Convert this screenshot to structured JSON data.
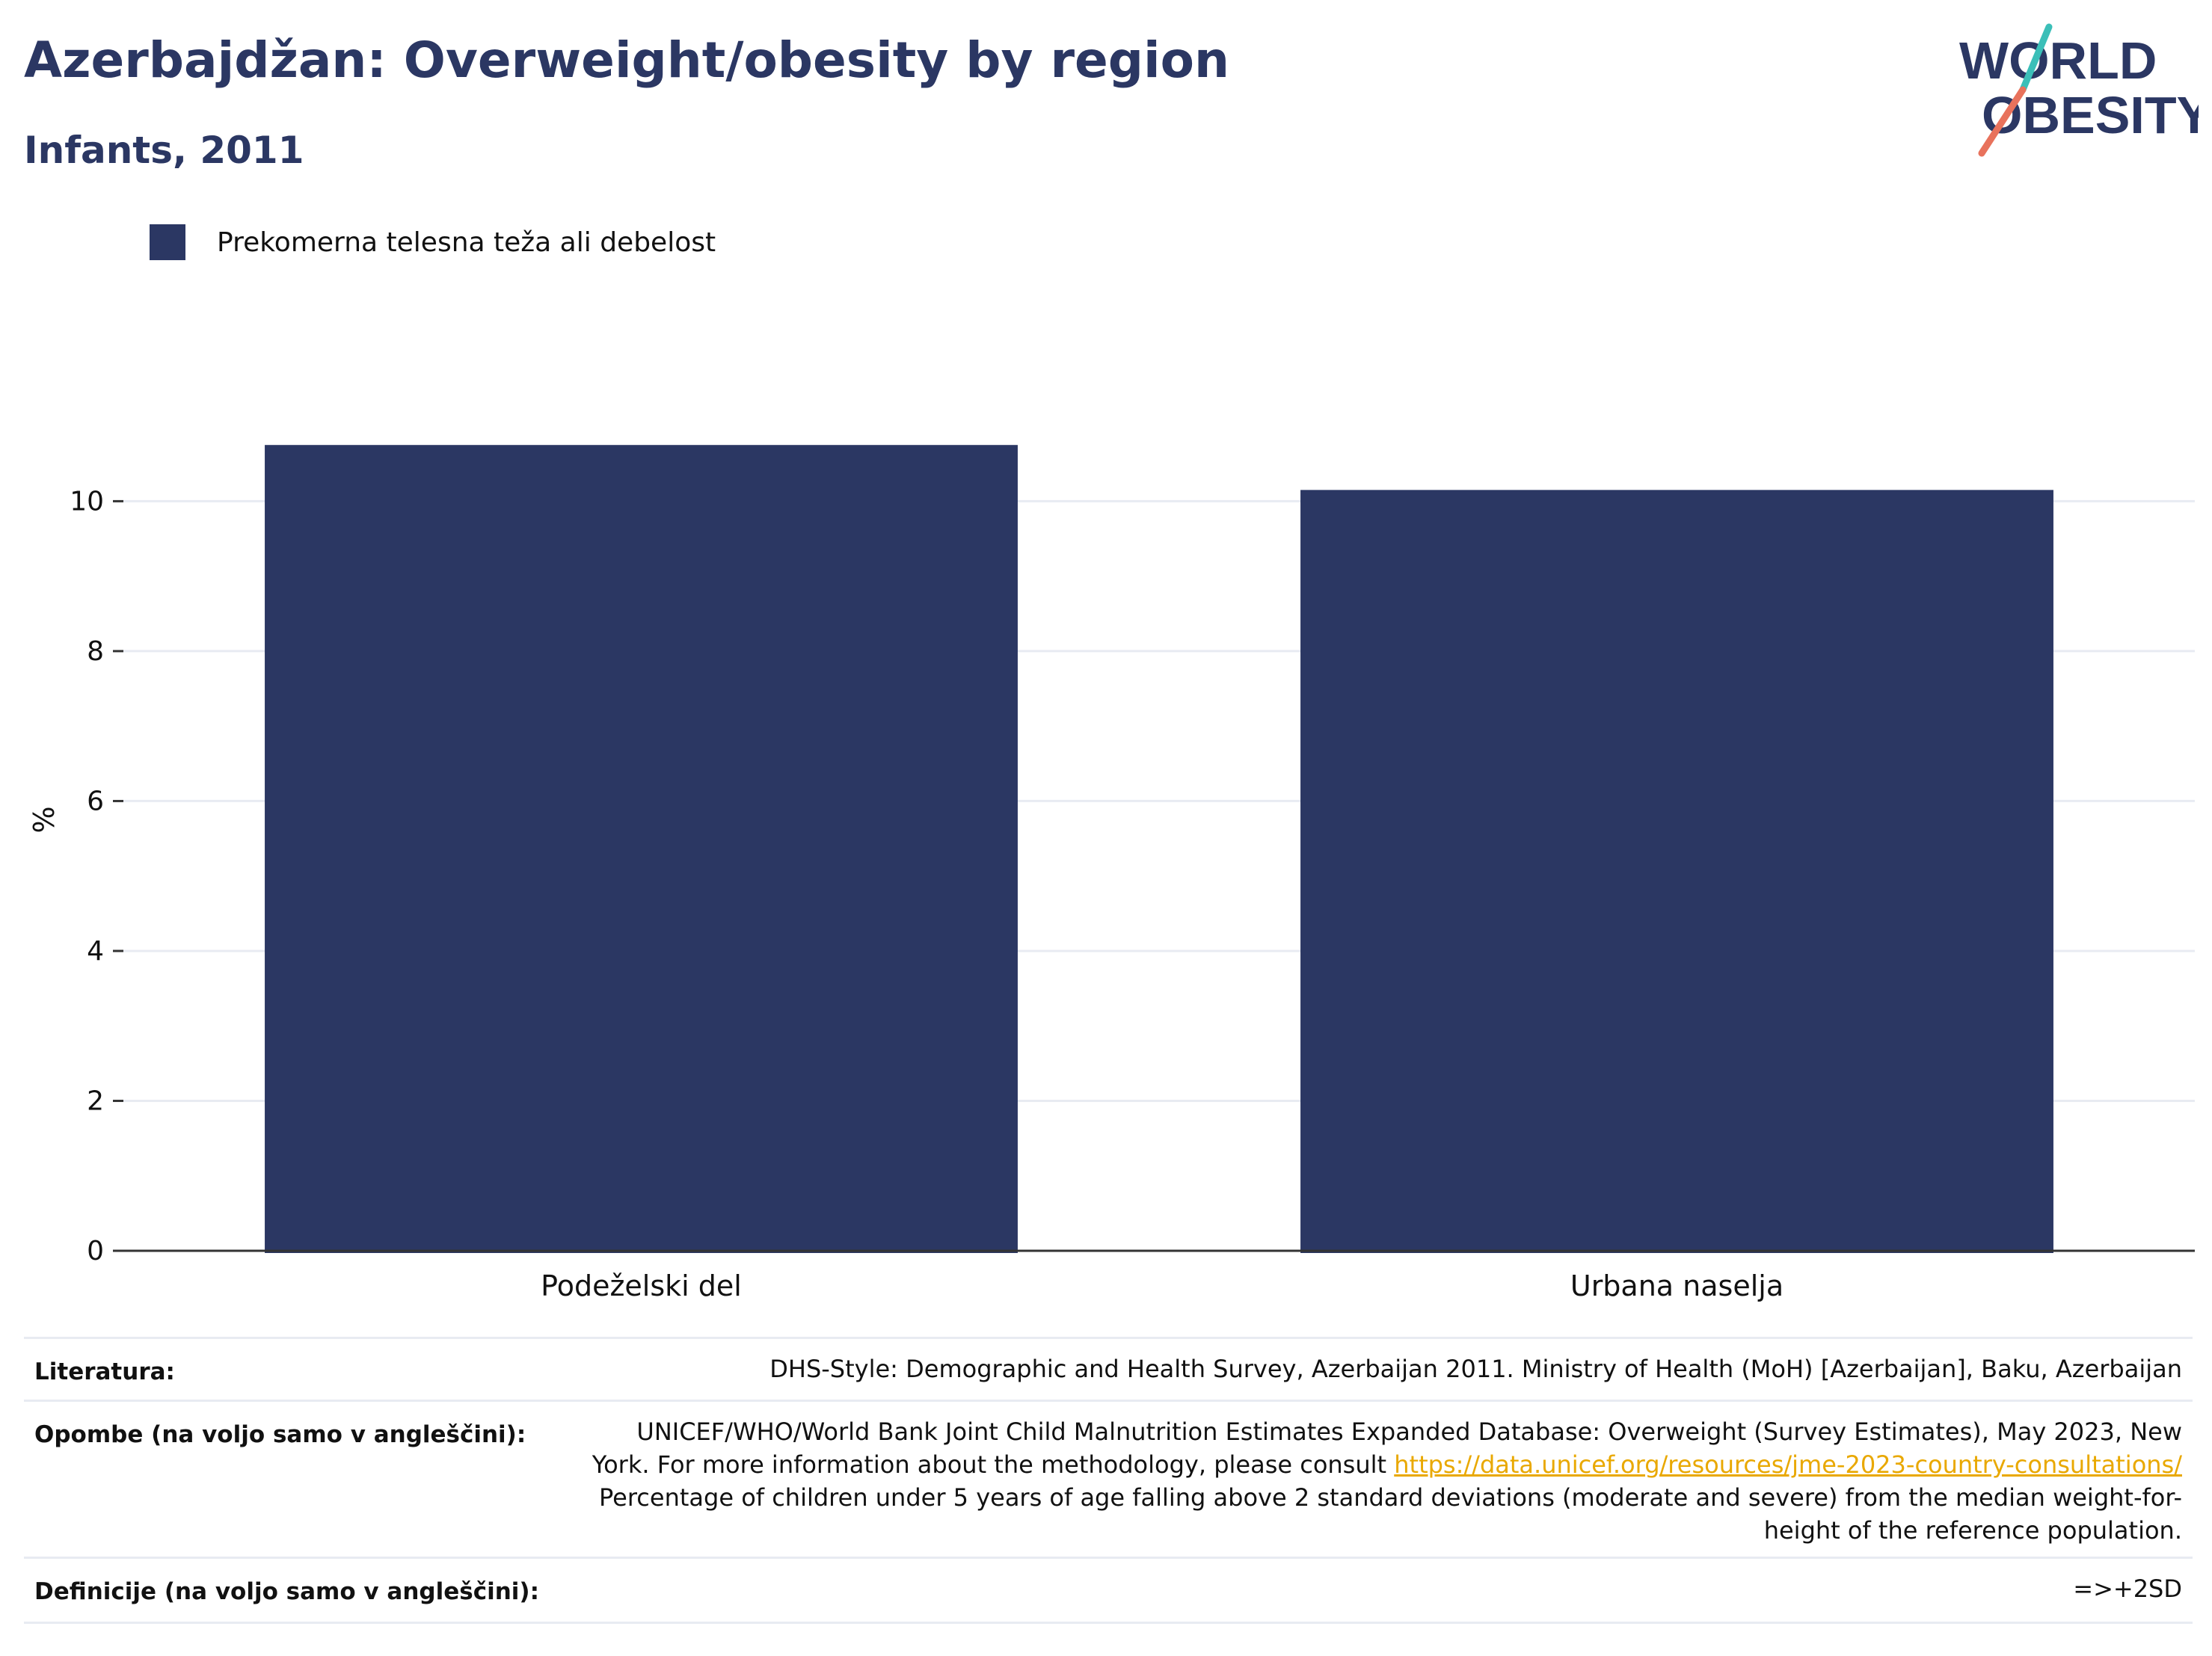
{
  "header": {
    "title": "Azerbajdžan: Overweight/obesity by region",
    "subtitle": "Infants, 2011"
  },
  "logo": {
    "line1": "WORLD",
    "line2": "OBESITY",
    "accent_teal": "#3bbfb8",
    "accent_coral": "#e8725c"
  },
  "colors": {
    "bar": "#2b3763",
    "title": "#2b3763",
    "grid": "#e8ebf2",
    "axis": "#333333",
    "link": "#e9a800"
  },
  "chart_data": {
    "type": "bar",
    "categories": [
      "Podeželski del",
      "Urbana naselja"
    ],
    "series": [
      {
        "name": "Prekomerna telesna teža ali debelost",
        "values": [
          10.75,
          10.15
        ]
      }
    ],
    "ylabel": "%",
    "ylim": [
      0,
      11.5
    ],
    "yticks": [
      0,
      2,
      4,
      6,
      8,
      10
    ],
    "grid": true,
    "legend_position": "top-left"
  },
  "footer": {
    "rows": [
      {
        "label": "Literatura:",
        "lines": [
          "DHS-Style: Demographic and Health Survey, Azerbaijan 2011. Ministry of Health (MoH) [Azerbaijan], Baku, Azerbaijan"
        ]
      },
      {
        "label": "Opombe (na voljo samo v angleščini):",
        "lines": [
          "UNICEF/WHO/World Bank Joint Child Malnutrition Estimates Expanded Database: Overweight (Survey Estimates), May 2023, New",
          "York. For more information about the methodology, please consult ",
          "Percentage of children under 5 years of age falling above 2 standard deviations (moderate and severe) from the median weight-for-",
          "height of the reference population."
        ],
        "link": "https://data.unicef.org/resources/jme-2023-country-consultations/"
      },
      {
        "label": "Definicije (na voljo samo v angleščini):",
        "lines": [
          "=>+2SD"
        ]
      }
    ]
  }
}
